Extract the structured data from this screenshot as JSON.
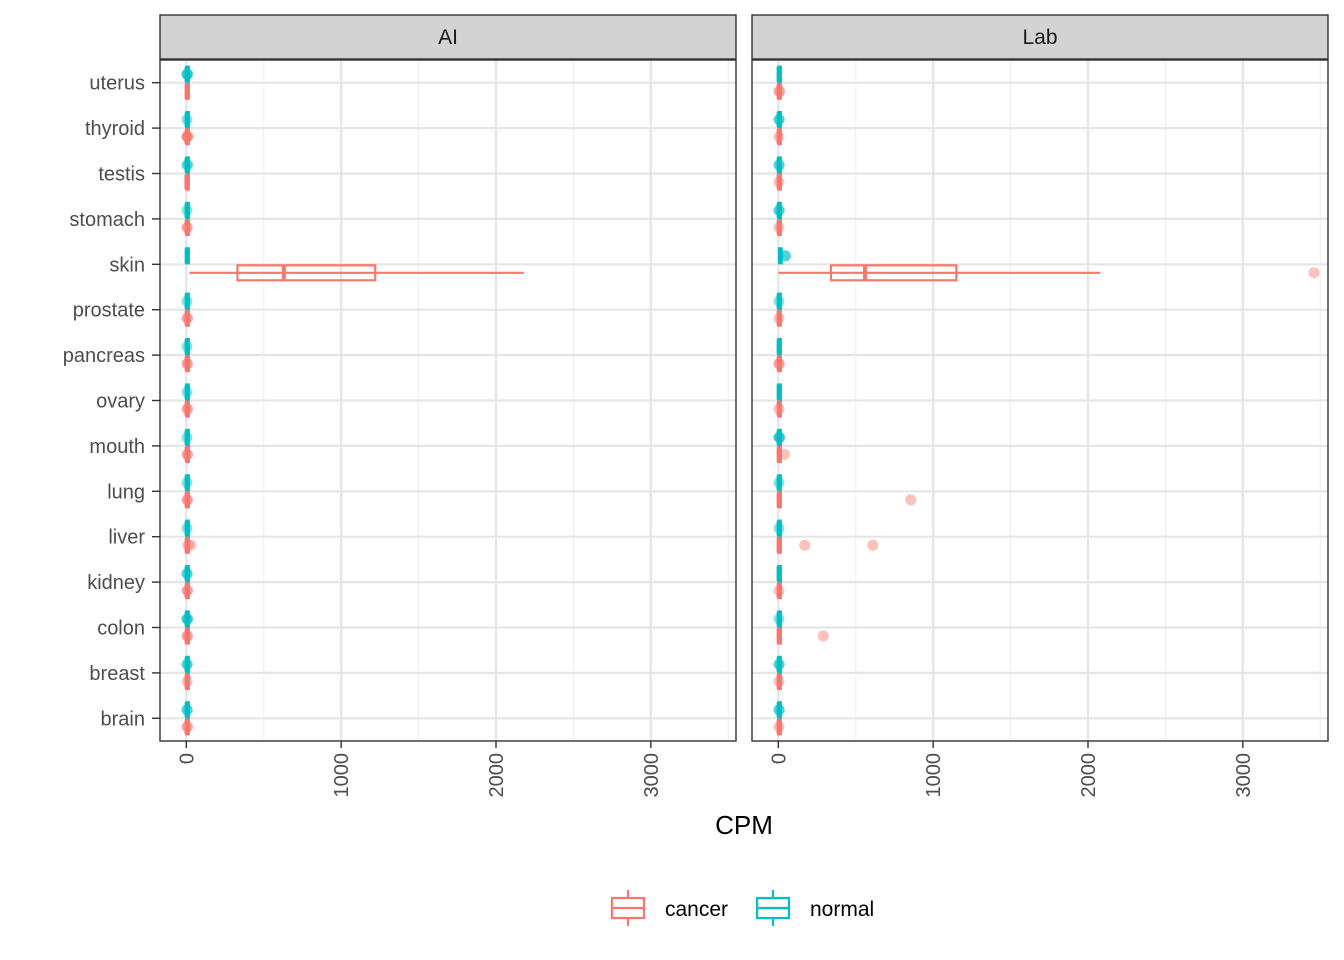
{
  "chart_data": {
    "type": "boxplot",
    "xlabel": "CPM",
    "ylabel": "",
    "xlim": [
      -170,
      3550
    ],
    "x_ticks": [
      0,
      1000,
      2000,
      3000
    ],
    "categories": [
      "uterus",
      "thyroid",
      "testis",
      "stomach",
      "skin",
      "prostate",
      "pancreas",
      "ovary",
      "mouth",
      "lung",
      "liver",
      "kidney",
      "colon",
      "breast",
      "brain"
    ],
    "grid": true,
    "legend_position": "bottom",
    "colors": {
      "cancer": "#F8766D",
      "normal": "#00BFC4"
    },
    "legend": [
      {
        "key": "cancer",
        "label": "cancer"
      },
      {
        "key": "normal",
        "label": "normal"
      }
    ],
    "panels": [
      {
        "label": "AI",
        "series": [
          {
            "name": "cancer",
            "boxes": [
              {
                "category": "uterus",
                "q1": 0,
                "median": 2,
                "q3": 5,
                "lo": 0,
                "hi": 10,
                "outliers": []
              },
              {
                "category": "thyroid",
                "q1": 0,
                "median": 2,
                "q3": 6,
                "lo": 0,
                "hi": 12,
                "outliers": [
                  3,
                  5,
                  8,
                  10
                ]
              },
              {
                "category": "testis",
                "q1": 0,
                "median": 1,
                "q3": 3,
                "lo": 0,
                "hi": 8,
                "outliers": []
              },
              {
                "category": "stomach",
                "q1": 0,
                "median": 2,
                "q3": 5,
                "lo": 0,
                "hi": 10,
                "outliers": [
                  4,
                  6
                ]
              },
              {
                "category": "skin",
                "q1": 330,
                "median": 630,
                "q3": 1220,
                "lo": 20,
                "hi": 2180,
                "outliers": []
              },
              {
                "category": "prostate",
                "q1": 0,
                "median": 2,
                "q3": 5,
                "lo": 0,
                "hi": 10,
                "outliers": [
                  5,
                  8
                ]
              },
              {
                "category": "pancreas",
                "q1": 0,
                "median": 2,
                "q3": 5,
                "lo": 0,
                "hi": 10,
                "outliers": [
                  4,
                  7
                ]
              },
              {
                "category": "ovary",
                "q1": 0,
                "median": 2,
                "q3": 5,
                "lo": 0,
                "hi": 10,
                "outliers": [
                  5,
                  8
                ]
              },
              {
                "category": "mouth",
                "q1": 0,
                "median": 2,
                "q3": 5,
                "lo": 0,
                "hi": 10,
                "outliers": [
                  5,
                  8
                ]
              },
              {
                "category": "lung",
                "q1": 0,
                "median": 2,
                "q3": 5,
                "lo": 0,
                "hi": 10,
                "outliers": [
                  5,
                  8
                ]
              },
              {
                "category": "liver",
                "q1": 0,
                "median": 2,
                "q3": 5,
                "lo": 0,
                "hi": 10,
                "outliers": [
                  10,
                  30
                ]
              },
              {
                "category": "kidney",
                "q1": 0,
                "median": 2,
                "q3": 5,
                "lo": 0,
                "hi": 10,
                "outliers": [
                  5,
                  8
                ]
              },
              {
                "category": "colon",
                "q1": 0,
                "median": 2,
                "q3": 5,
                "lo": 0,
                "hi": 10,
                "outliers": [
                  5,
                  8
                ]
              },
              {
                "category": "breast",
                "q1": 0,
                "median": 2,
                "q3": 5,
                "lo": 0,
                "hi": 10,
                "outliers": [
                  5
                ]
              },
              {
                "category": "brain",
                "q1": 0,
                "median": 2,
                "q3": 5,
                "lo": 0,
                "hi": 10,
                "outliers": [
                  5,
                  8
                ]
              }
            ]
          },
          {
            "name": "normal",
            "boxes": [
              {
                "category": "uterus",
                "q1": 0,
                "median": 2,
                "q3": 5,
                "lo": 0,
                "hi": 10,
                "outliers": [
                  4,
                  6,
                  8
                ]
              },
              {
                "category": "thyroid",
                "q1": 0,
                "median": 2,
                "q3": 5,
                "lo": 0,
                "hi": 10,
                "outliers": [
                  4
                ]
              },
              {
                "category": "testis",
                "q1": 0,
                "median": 2,
                "q3": 5,
                "lo": 0,
                "hi": 10,
                "outliers": [
                  5,
                  8
                ]
              },
              {
                "category": "stomach",
                "q1": 0,
                "median": 2,
                "q3": 5,
                "lo": 0,
                "hi": 10,
                "outliers": [
                  4
                ]
              },
              {
                "category": "skin",
                "q1": 0,
                "median": 2,
                "q3": 5,
                "lo": 0,
                "hi": 10,
                "outliers": []
              },
              {
                "category": "prostate",
                "q1": 0,
                "median": 2,
                "q3": 5,
                "lo": 0,
                "hi": 10,
                "outliers": [
                  4
                ]
              },
              {
                "category": "pancreas",
                "q1": 0,
                "median": 2,
                "q3": 5,
                "lo": 0,
                "hi": 10,
                "outliers": [
                  4
                ]
              },
              {
                "category": "ovary",
                "q1": 0,
                "median": 2,
                "q3": 5,
                "lo": 0,
                "hi": 10,
                "outliers": [
                  4
                ]
              },
              {
                "category": "mouth",
                "q1": 0,
                "median": 2,
                "q3": 5,
                "lo": 0,
                "hi": 10,
                "outliers": [
                  4
                ]
              },
              {
                "category": "lung",
                "q1": 0,
                "median": 2,
                "q3": 5,
                "lo": 0,
                "hi": 10,
                "outliers": [
                  4
                ]
              },
              {
                "category": "liver",
                "q1": 0,
                "median": 2,
                "q3": 5,
                "lo": 0,
                "hi": 10,
                "outliers": [
                  4
                ]
              },
              {
                "category": "kidney",
                "q1": 0,
                "median": 2,
                "q3": 5,
                "lo": 0,
                "hi": 10,
                "outliers": [
                  4,
                  6
                ]
              },
              {
                "category": "colon",
                "q1": 0,
                "median": 2,
                "q3": 5,
                "lo": 0,
                "hi": 10,
                "outliers": [
                  4,
                  6,
                  8
                ]
              },
              {
                "category": "breast",
                "q1": 0,
                "median": 2,
                "q3": 5,
                "lo": 0,
                "hi": 10,
                "outliers": [
                  4,
                  6
                ]
              },
              {
                "category": "brain",
                "q1": 0,
                "median": 2,
                "q3": 5,
                "lo": 0,
                "hi": 10,
                "outliers": [
                  4,
                  6
                ]
              }
            ]
          }
        ]
      },
      {
        "label": "Lab",
        "series": [
          {
            "name": "cancer",
            "boxes": [
              {
                "category": "uterus",
                "q1": 0,
                "median": 2,
                "q3": 5,
                "lo": 0,
                "hi": 10,
                "outliers": [
                  5,
                  8
                ]
              },
              {
                "category": "thyroid",
                "q1": 0,
                "median": 2,
                "q3": 5,
                "lo": 0,
                "hi": 10,
                "outliers": [
                  4
                ]
              },
              {
                "category": "testis",
                "q1": 0,
                "median": 2,
                "q3": 5,
                "lo": 0,
                "hi": 10,
                "outliers": [
                  4
                ]
              },
              {
                "category": "stomach",
                "q1": 0,
                "median": 2,
                "q3": 5,
                "lo": 0,
                "hi": 10,
                "outliers": [
                  4
                ]
              },
              {
                "category": "skin",
                "q1": 340,
                "median": 560,
                "q3": 1150,
                "lo": 0,
                "hi": 2080,
                "outliers": [
                  3460
                ]
              },
              {
                "category": "prostate",
                "q1": 0,
                "median": 2,
                "q3": 5,
                "lo": 0,
                "hi": 10,
                "outliers": [
                  4
                ]
              },
              {
                "category": "pancreas",
                "q1": 0,
                "median": 2,
                "q3": 5,
                "lo": 0,
                "hi": 10,
                "outliers": [
                  4,
                  6
                ]
              },
              {
                "category": "ovary",
                "q1": 0,
                "median": 2,
                "q3": 5,
                "lo": 0,
                "hi": 10,
                "outliers": [
                  4
                ]
              },
              {
                "category": "mouth",
                "q1": 0,
                "median": 2,
                "q3": 5,
                "lo": 0,
                "hi": 10,
                "outliers": [
                  40
                ]
              },
              {
                "category": "lung",
                "q1": 0,
                "median": 2,
                "q3": 5,
                "lo": 0,
                "hi": 10,
                "outliers": [
                  855
                ]
              },
              {
                "category": "liver",
                "q1": 0,
                "median": 2,
                "q3": 5,
                "lo": 0,
                "hi": 10,
                "outliers": [
                  170,
                  610
                ]
              },
              {
                "category": "kidney",
                "q1": 0,
                "median": 2,
                "q3": 5,
                "lo": 0,
                "hi": 10,
                "outliers": [
                  4
                ]
              },
              {
                "category": "colon",
                "q1": 0,
                "median": 2,
                "q3": 5,
                "lo": 0,
                "hi": 10,
                "outliers": [
                  290
                ]
              },
              {
                "category": "breast",
                "q1": 0,
                "median": 2,
                "q3": 5,
                "lo": 0,
                "hi": 10,
                "outliers": [
                  4
                ]
              },
              {
                "category": "brain",
                "q1": 0,
                "median": 2,
                "q3": 5,
                "lo": 0,
                "hi": 10,
                "outliers": [
                  4
                ]
              }
            ]
          },
          {
            "name": "normal",
            "boxes": [
              {
                "category": "uterus",
                "q1": 0,
                "median": 2,
                "q3": 4,
                "lo": 0,
                "hi": 8,
                "outliers": []
              },
              {
                "category": "thyroid",
                "q1": 0,
                "median": 2,
                "q3": 5,
                "lo": 0,
                "hi": 10,
                "outliers": [
                  4,
                  6
                ]
              },
              {
                "category": "testis",
                "q1": 0,
                "median": 2,
                "q3": 5,
                "lo": 0,
                "hi": 10,
                "outliers": [
                  4,
                  6
                ]
              },
              {
                "category": "stomach",
                "q1": 0,
                "median": 2,
                "q3": 5,
                "lo": 0,
                "hi": 10,
                "outliers": [
                  4,
                  6
                ]
              },
              {
                "category": "skin",
                "q1": 5,
                "median": 10,
                "q3": 20,
                "lo": 0,
                "hi": 30,
                "outliers": [
                  40,
                  50
                ]
              },
              {
                "category": "prostate",
                "q1": 0,
                "median": 2,
                "q3": 5,
                "lo": 0,
                "hi": 10,
                "outliers": [
                  4
                ]
              },
              {
                "category": "pancreas",
                "q1": 0,
                "median": 2,
                "q3": 4,
                "lo": 0,
                "hi": 8,
                "outliers": []
              },
              {
                "category": "ovary",
                "q1": 0,
                "median": 2,
                "q3": 4,
                "lo": 0,
                "hi": 8,
                "outliers": []
              },
              {
                "category": "mouth",
                "q1": 0,
                "median": 2,
                "q3": 5,
                "lo": 0,
                "hi": 10,
                "outliers": [
                  4,
                  6,
                  8
                ]
              },
              {
                "category": "lung",
                "q1": 0,
                "median": 2,
                "q3": 5,
                "lo": 0,
                "hi": 10,
                "outliers": [
                  4
                ]
              },
              {
                "category": "liver",
                "q1": 0,
                "median": 2,
                "q3": 5,
                "lo": 0,
                "hi": 10,
                "outliers": [
                  4
                ]
              },
              {
                "category": "kidney",
                "q1": 0,
                "median": 2,
                "q3": 4,
                "lo": 0,
                "hi": 8,
                "outliers": []
              },
              {
                "category": "colon",
                "q1": 0,
                "median": 2,
                "q3": 5,
                "lo": 0,
                "hi": 10,
                "outliers": [
                  4
                ]
              },
              {
                "category": "breast",
                "q1": 0,
                "median": 2,
                "q3": 5,
                "lo": 0,
                "hi": 10,
                "outliers": [
                  4,
                  6
                ]
              },
              {
                "category": "brain",
                "q1": 0,
                "median": 2,
                "q3": 5,
                "lo": 0,
                "hi": 10,
                "outliers": [
                  4,
                  6
                ]
              }
            ]
          }
        ]
      }
    ]
  }
}
